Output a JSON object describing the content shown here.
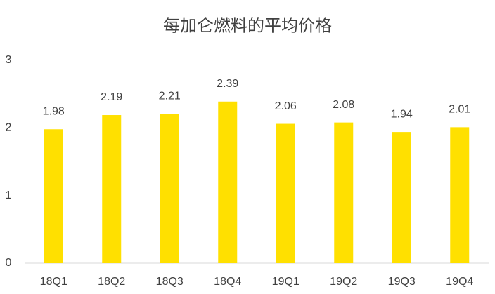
{
  "chart_data": {
    "type": "bar",
    "title": "每加仑燃料的平均价格",
    "categories": [
      "18Q1",
      "18Q2",
      "18Q3",
      "18Q4",
      "19Q1",
      "19Q2",
      "19Q3",
      "19Q4"
    ],
    "values": [
      1.98,
      2.19,
      2.21,
      2.39,
      2.06,
      2.08,
      1.94,
      2.01
    ],
    "color": "#ffe000",
    "ylim": [
      0,
      3
    ],
    "yticks": [
      0,
      1,
      2,
      3
    ],
    "grid": false
  }
}
